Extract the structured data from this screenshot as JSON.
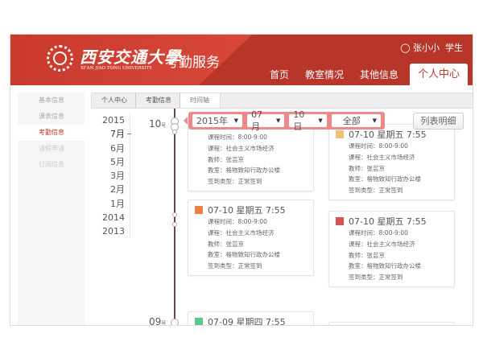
{
  "header": {
    "university_cn": "西安交通大學",
    "university_en": "XI'AN JIAO TONG UNIVERSITY",
    "service": "考勤服务",
    "user": "张小小",
    "role": "学生",
    "brand_color": "#b8352a"
  },
  "nav": {
    "tabs": [
      {
        "label": "首页"
      },
      {
        "label": "教室情况"
      },
      {
        "label": "其他信息"
      },
      {
        "label": "个人中心",
        "active": true
      }
    ]
  },
  "sidebar": {
    "items": [
      {
        "label": "基本信息"
      },
      {
        "label": "课表信息"
      },
      {
        "label": "考勤信息",
        "active": true
      },
      {
        "label": "请假申请"
      },
      {
        "label": "订阅信息"
      }
    ]
  },
  "breadcrumb": [
    "个人中心",
    "考勤信息",
    "时间轴"
  ],
  "years": [
    "2015",
    "7月",
    "6月",
    "5月",
    "3月",
    "2月",
    "1月",
    "2014",
    "2013"
  ],
  "days": [
    {
      "num": "10",
      "unit": "号"
    },
    {
      "num": "09",
      "unit": "号"
    }
  ],
  "filter": {
    "year": "2015年",
    "month": "07月",
    "day": "10日",
    "type": "全部"
  },
  "list_button": "列表明细",
  "labels": {
    "time": "课程时间：",
    "course": "课程：",
    "teacher": "教师：",
    "room": "教室：",
    "sign": "签到类型："
  },
  "cards": [
    {
      "title": "07-10 星期五 7:55",
      "time": "8:00-9:00",
      "course": "社会主义市场经济",
      "teacher": "张芸京",
      "room": "格物致知行政办公楼",
      "sign": "正常签到",
      "color": "#f0c070"
    },
    {
      "title": "07-10 星期五 7:55",
      "time": "8:00-9:00",
      "course": "社会主义市场经济",
      "teacher": "张芸京",
      "room": "格物致知行政办公楼",
      "sign": "正常签到",
      "color": "#f0c070"
    },
    {
      "title": "07-10 星期五 7:55",
      "time": "8:00-9:00",
      "course": "社会主义市场经济",
      "teacher": "张芸京",
      "room": "格物致知行政办公楼",
      "sign": "正常签到",
      "color": "#f08040"
    },
    {
      "title": "07-10 星期五 7:55",
      "time": "8:00-9:00",
      "course": "社会主义市场经济",
      "teacher": "张芸京",
      "room": "格物致知行政办公楼",
      "sign": "正常签到",
      "color": "#d9534f"
    },
    {
      "title": "07-09 星期四 7:55",
      "color": "#5cc88a"
    }
  ]
}
